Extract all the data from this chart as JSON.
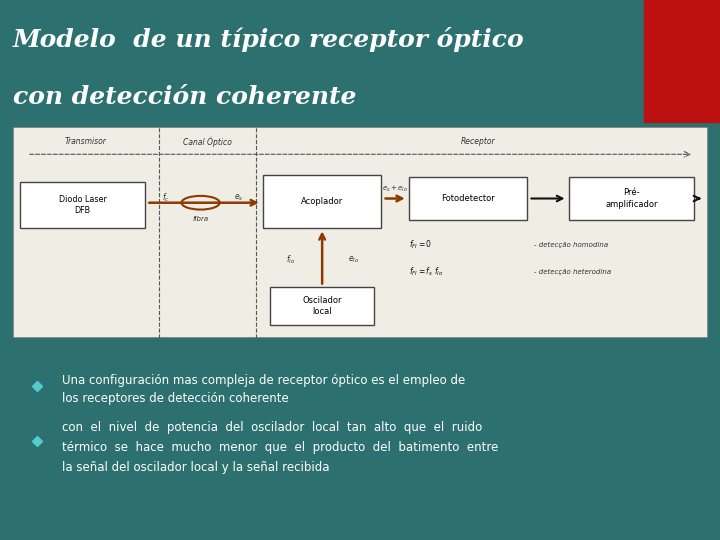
{
  "bg_color": "#2d7070",
  "title_line1": "Modelo  de un típico receptor óptico",
  "title_line2": "con detección coherente",
  "title_color": "#ffffff",
  "title_fontsize": 18,
  "red_rect_color": "#bb1111",
  "diagram_bg": "#f0ede5",
  "bullet_color": "#55cccc",
  "bullet_text_color": "#ffffff",
  "bullet1_line1": "Una configuración mas compleja de receptor óptico es el empleo de",
  "bullet1_line2": "los receptores de detección coherente",
  "bullet2_line1": "con  el  nivel  de  potencia  del  oscilador  local  tan  alto  que  el  ruido",
  "bullet2_line2": "térmico  se  hace  mucho  menor  que  el  producto  del  batimento  entre",
  "bullet2_line3": "la señal del oscilador local y la señal recibida",
  "box_laser": "Diodo Laser\nDFB",
  "box_acoplador": "Acoplador",
  "box_fotodetector": "Fotodetector",
  "box_preamp": "Pré-\namplificador",
  "box_oscilador": "Oscilador\nlocal",
  "lbl_transmisor": "Transmisor",
  "lbl_canal": "Canal Óptico",
  "lbl_receptor": "Receptor",
  "lbl_fibra": "fibra",
  "lbl_fc": "f_c",
  "lbl_es": "e_s",
  "lbl_eselo": "e_s + e_{lo}",
  "lbl_flo": "f_{lo}",
  "lbl_elo": "e_{lo}",
  "lbl_homo1": "f_{FI}=0",
  "lbl_homo2": "- detecção homodina",
  "lbl_hetero1": "f_{FI}=f_s  f_{lo}",
  "lbl_hetero2": "- detecção heterodina",
  "arrow_brown": "#8B3A00",
  "arrow_black": "#111111",
  "box_edge": "#444444"
}
